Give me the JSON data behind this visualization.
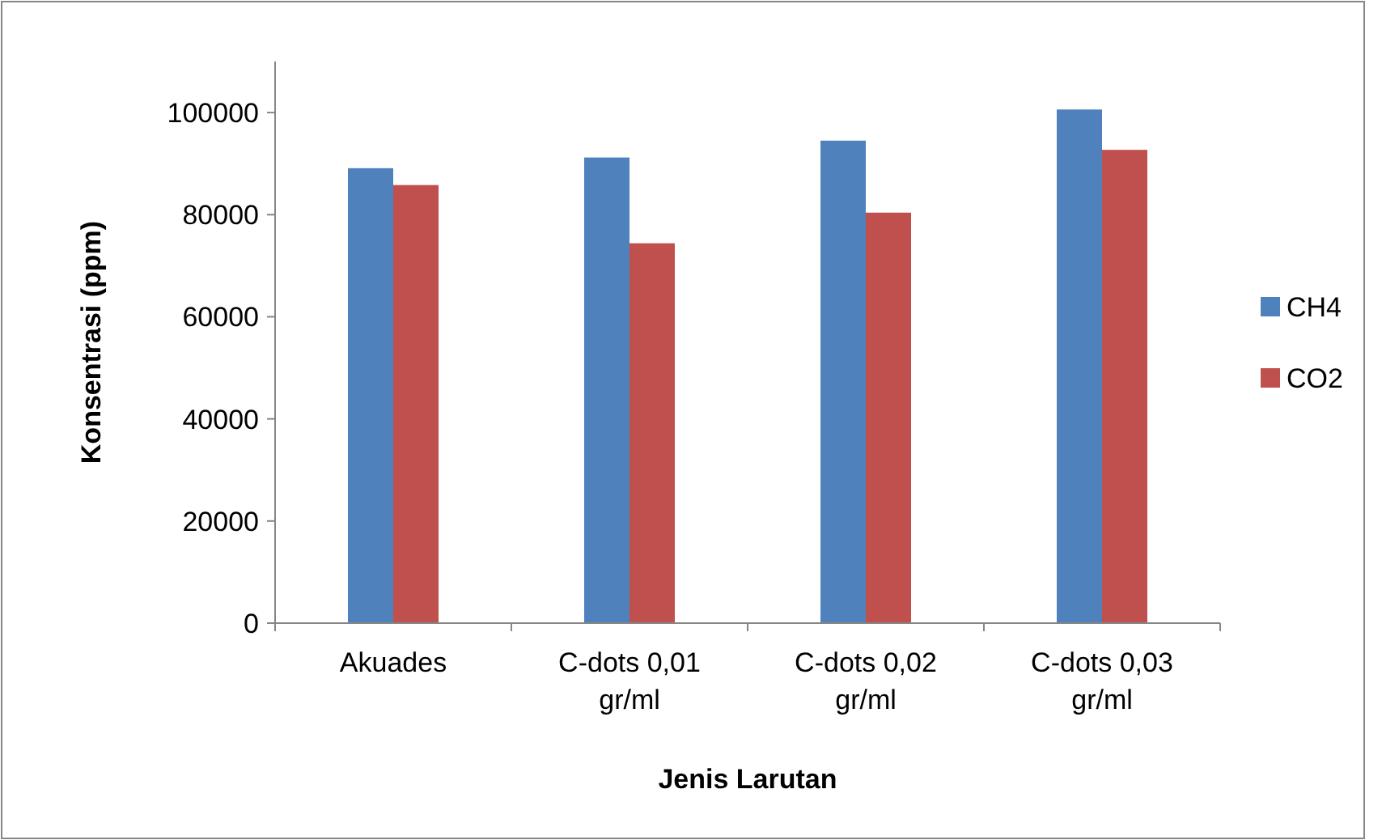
{
  "chart_data": {
    "type": "bar",
    "xlabel": "Jenis Larutan",
    "ylabel": "Konsentrasi (ppm)",
    "categories": [
      "Akuades",
      "C-dots 0,01 gr/ml",
      "C-dots 0,02 gr/ml",
      "C-dots 0,03 gr/ml"
    ],
    "series": [
      {
        "name": "CH4",
        "color": "#4f81bd",
        "values": [
          89100,
          91200,
          94500,
          100600
        ]
      },
      {
        "name": "CO2",
        "color": "#c0504d",
        "values": [
          85800,
          74400,
          80400,
          92700
        ]
      }
    ],
    "ylim": [
      0,
      110000
    ],
    "yticks": [
      0,
      20000,
      40000,
      60000,
      80000,
      100000
    ],
    "grid": false,
    "legend": "right"
  }
}
